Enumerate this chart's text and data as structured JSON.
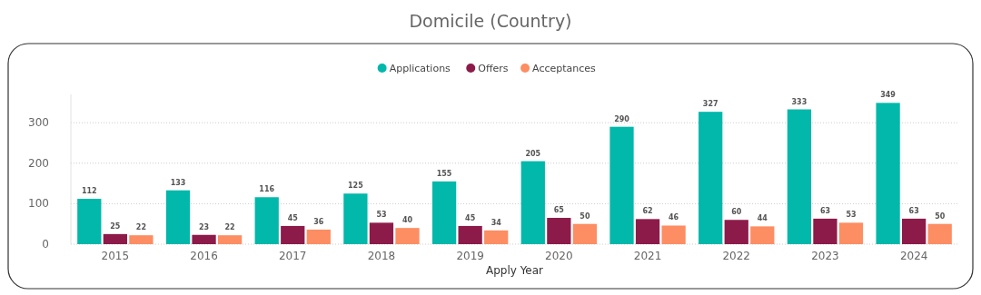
{
  "chart_data": {
    "type": "bar",
    "title": "Domicile (Country)",
    "xlabel": "Apply Year",
    "categories": [
      "2015",
      "2016",
      "2017",
      "2018",
      "2019",
      "2020",
      "2021",
      "2022",
      "2023",
      "2024"
    ],
    "series": [
      {
        "name": "Applications",
        "color": "#01b8aa",
        "values": [
          112,
          133,
          116,
          125,
          155,
          205,
          290,
          327,
          333,
          349
        ]
      },
      {
        "name": "Offers",
        "color": "#8d1b4a",
        "values": [
          25,
          23,
          45,
          53,
          45,
          65,
          62,
          60,
          63,
          63
        ]
      },
      {
        "name": "Acceptances",
        "color": "#fd8d62",
        "values": [
          22,
          22,
          36,
          40,
          34,
          50,
          46,
          44,
          53,
          50
        ]
      }
    ],
    "ylim": [
      0,
      370
    ],
    "yticks": [
      0,
      100,
      200,
      300
    ],
    "grid": "y",
    "legend": "top",
    "data_labels": true
  }
}
